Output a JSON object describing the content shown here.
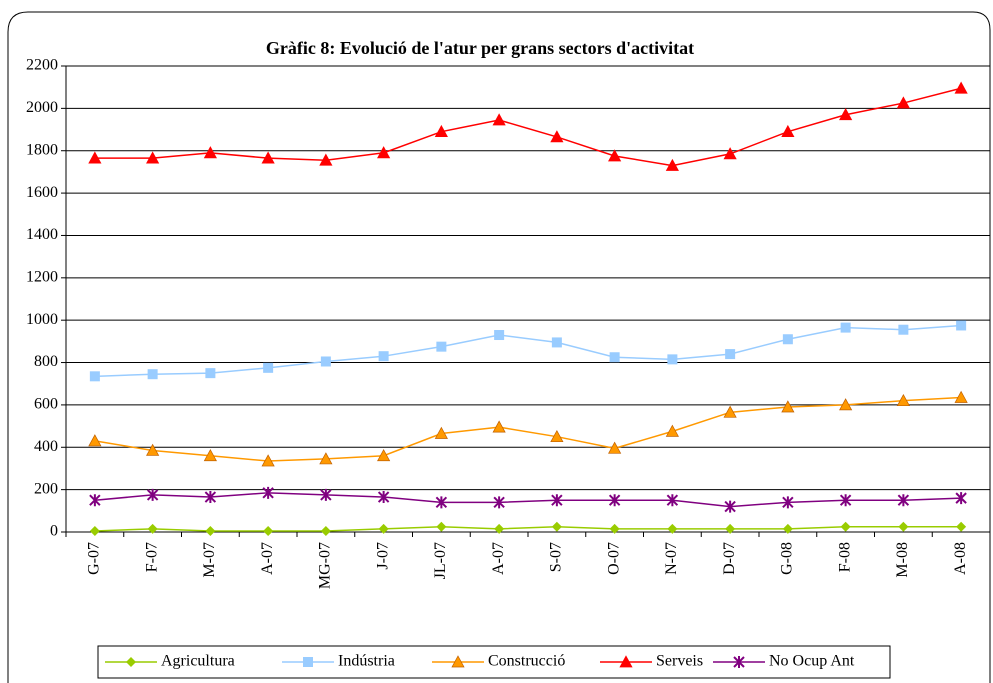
{
  "chart_data": {
    "type": "line",
    "title": "Gràfic 8: Evolució de l'atur per grans sectors d'activitat",
    "categories": [
      "G-07",
      "F-07",
      "M-07",
      "A-07",
      "MG-07",
      "J-07",
      "JL-07",
      "A-07",
      "S-07",
      "O-07",
      "N-07",
      "D-07",
      "G-08",
      "F-08",
      "M-08",
      "A-08"
    ],
    "series": [
      {
        "name": "Agricultura",
        "color": "#99cc00",
        "marker": "diamond",
        "values": [
          5,
          15,
          5,
          5,
          5,
          15,
          25,
          15,
          25,
          15,
          15,
          15,
          15,
          25,
          25,
          25
        ]
      },
      {
        "name": "Indústria",
        "color": "#99ccff",
        "marker": "square",
        "values": [
          735,
          745,
          750,
          775,
          805,
          830,
          875,
          930,
          895,
          825,
          815,
          840,
          910,
          965,
          955,
          975
        ]
      },
      {
        "name": "Construcció",
        "color": "#ff9900",
        "marker": "triangle",
        "values": [
          430,
          385,
          360,
          335,
          345,
          360,
          465,
          495,
          450,
          395,
          475,
          565,
          590,
          600,
          620,
          635
        ]
      },
      {
        "name": "Serveis",
        "color": "#ff0000",
        "marker": "triangle",
        "values": [
          1765,
          1765,
          1790,
          1765,
          1755,
          1790,
          1890,
          1945,
          1865,
          1775,
          1730,
          1785,
          1890,
          1970,
          2025,
          2095
        ]
      },
      {
        "name": "No Ocup Ant",
        "color": "#800080",
        "marker": "star",
        "values": [
          150,
          175,
          165,
          185,
          175,
          165,
          140,
          140,
          150,
          150,
          150,
          120,
          140,
          150,
          150,
          160
        ]
      }
    ],
    "ylim": [
      0,
      2200
    ],
    "yticks": [
      0,
      200,
      400,
      600,
      800,
      1000,
      1200,
      1400,
      1600,
      1800,
      2000,
      2200
    ],
    "grid": true,
    "legend": "bottom"
  }
}
